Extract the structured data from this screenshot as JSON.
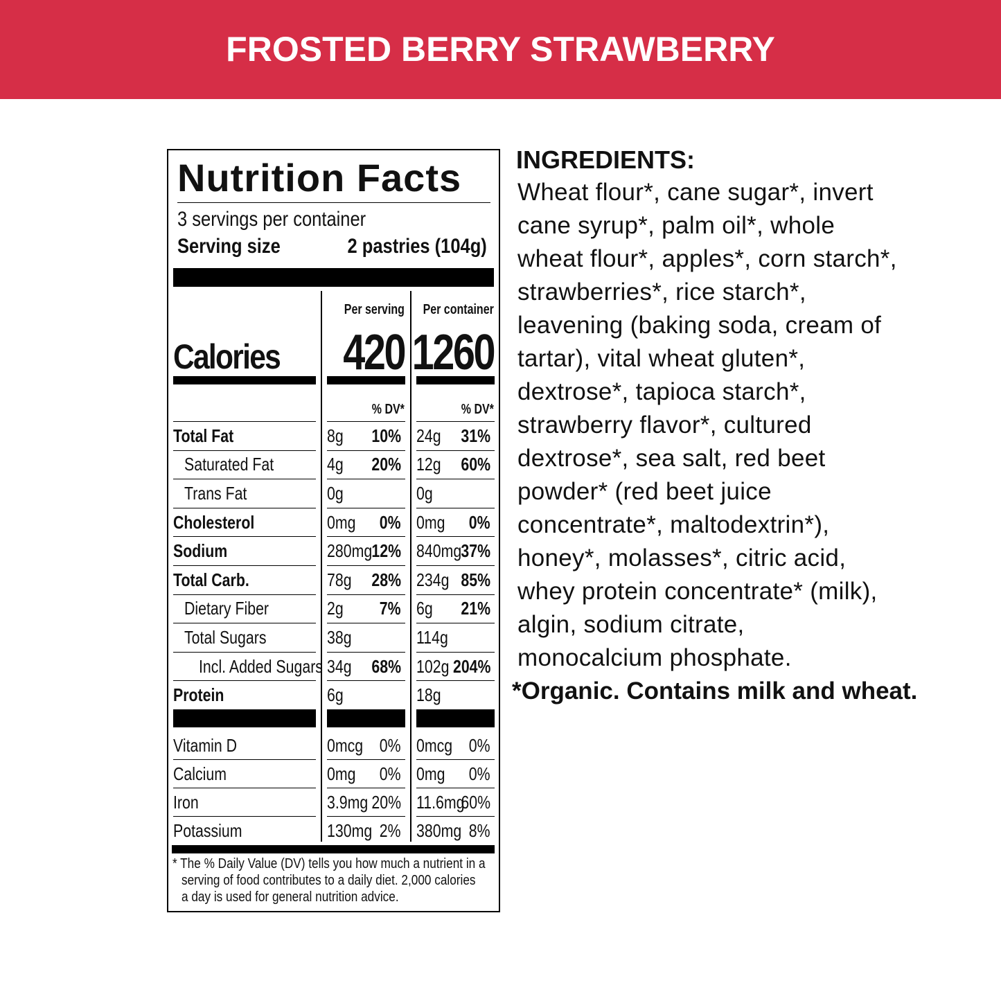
{
  "header": {
    "title": "FROSTED BERRY STRAWBERRY"
  },
  "nutrition": {
    "title": "Nutrition Facts",
    "servings": "3 servings per container",
    "serving_size_label": "Serving size",
    "serving_size": "2 pastries (104g)",
    "per_serving_label": "Per serving",
    "per_container_label": "Per container",
    "calories_label": "Calories",
    "calories_serving": "420",
    "calories_container": "1260",
    "dv_labels": [
      "% DV*",
      "% DV*"
    ],
    "rows": [
      [
        "Total Fat",
        "8g",
        "10%",
        "24g",
        "31%"
      ],
      [
        "Saturated Fat",
        "4g",
        "20%",
        "12g",
        "60%"
      ],
      [
        "Trans Fat",
        "0g",
        null,
        "0g",
        null
      ],
      [
        "Cholesterol",
        "0mg",
        "0%",
        "0mg",
        "0%"
      ],
      [
        "Sodium",
        "280mg",
        "12%",
        "840mg",
        "37%"
      ],
      [
        "Total Carb.",
        "78g",
        "28%",
        "234g",
        "85%"
      ],
      [
        "Dietary Fiber",
        "2g",
        "7%",
        "6g",
        "21%"
      ],
      [
        "Total Sugars",
        "38g",
        null,
        "114g",
        null
      ],
      [
        "Incl. Added Sugars",
        "34g",
        "68%",
        "102g",
        "204%"
      ],
      [
        "Protein",
        "6g",
        null,
        "18g",
        null
      ]
    ],
    "vitamins": [
      [
        "Vitamin D",
        "0mcg",
        "0%",
        "0mcg",
        "0%"
      ],
      [
        "Calcium",
        "0mg",
        "0%",
        "0mg",
        "0%"
      ],
      [
        "Iron",
        "3.9mg",
        "20%",
        "11.6mg",
        "60%"
      ],
      [
        "Potassium",
        "130mg",
        "2%",
        "380mg",
        "8%"
      ]
    ],
    "footnote": [
      "* The % Daily Value (DV) tells you how much a nutrient in a",
      "serving of food contributes to a daily diet. 2,000 calories",
      "a day is used for general nutrition advice."
    ]
  },
  "ingredients": {
    "title": "INGREDIENTS:",
    "lines": [
      "Wheat flour*, cane sugar*, invert",
      "cane syrup*, palm oil*, whole",
      "wheat flour*, apples*, corn starch*,",
      "strawberries*, rice starch*,",
      "leavening (baking soda, cream of",
      "tartar), vital wheat gluten*,",
      "dextrose*, tapioca starch*,",
      "strawberry flavor*, cultured",
      "dextrose*, sea salt, red beet",
      "powder* (red beet juice",
      "concentrate*, maltodextrin*),",
      "honey*, molasses*, citric acid,",
      "whey protein concentrate* (milk),",
      "algin, sodium citrate,",
      "monocalcium phosphate."
    ],
    "note": "*Organic. Contains milk and wheat."
  }
}
